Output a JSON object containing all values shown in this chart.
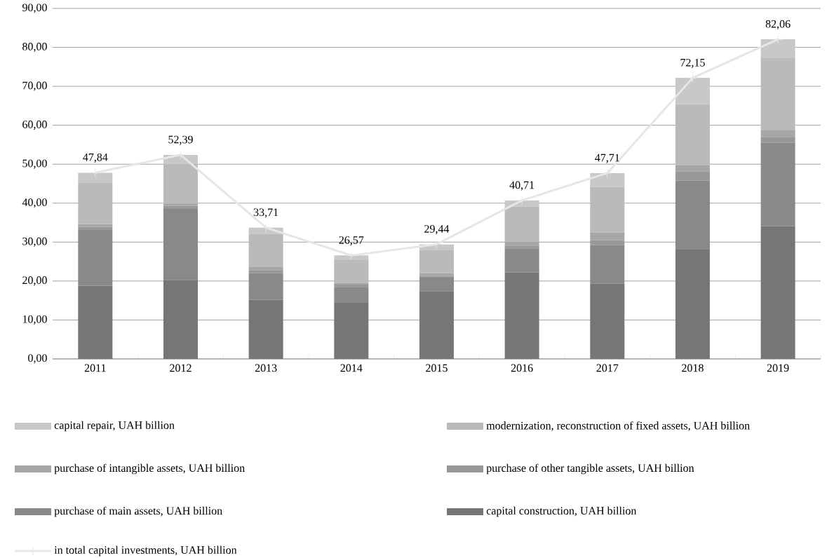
{
  "chart_data": {
    "type": "bar",
    "stacked": true,
    "categories": [
      "2011",
      "2012",
      "2013",
      "2014",
      "2015",
      "2016",
      "2017",
      "2018",
      "2019"
    ],
    "series": [
      {
        "name": "capital construction, UAH billion",
        "color": "#767676",
        "values": [
          18.8,
          20.3,
          15.2,
          14.4,
          17.4,
          22.2,
          19.3,
          28.1,
          34.1
        ]
      },
      {
        "name": "purchase of main assets, UAH billion",
        "color": "#898989",
        "values": [
          14.3,
          18.2,
          6.8,
          4.1,
          3.5,
          6.2,
          9.9,
          17.7,
          21.4
        ]
      },
      {
        "name": "purchase of other tangible assets, UAH billion",
        "color": "#989898",
        "values": [
          0.8,
          0.8,
          0.8,
          0.6,
          0.4,
          0.7,
          1.3,
          2.4,
          1.5
        ]
      },
      {
        "name": "purchase of intangible assets, UAH billion",
        "color": "#a6a6a6",
        "values": [
          0.7,
          0.6,
          0.8,
          0.4,
          0.7,
          0.9,
          2.0,
          1.5,
          1.8
        ]
      },
      {
        "name": "modernization, reconstruction of fixed assets, UAH billion",
        "color": "#bababa",
        "values": [
          10.6,
          10.1,
          8.5,
          6.0,
          5.9,
          9.1,
          11.7,
          15.7,
          18.4
        ]
      },
      {
        "name": "capital repair, UAH billion",
        "color": "#c8c8c8",
        "values": [
          2.6,
          2.4,
          1.6,
          1.1,
          1.5,
          1.6,
          3.5,
          6.8,
          4.9
        ]
      },
      {
        "name": "in total capital investments, UAH billion",
        "type": "line",
        "color": "#e6e6e6",
        "marker": "cross",
        "values": [
          47.84,
          52.39,
          33.71,
          26.57,
          29.44,
          40.71,
          47.71,
          72.15,
          82.06
        ],
        "value_labels": [
          "47,84",
          "52,39",
          "33,71",
          "26,57",
          "29,44",
          "40,71",
          "47,71",
          "72,15",
          "82,06"
        ]
      }
    ],
    "ylim": [
      0,
      90
    ],
    "yticks": [
      {
        "value": 0,
        "label": "0,00"
      },
      {
        "value": 10,
        "label": "10,00"
      },
      {
        "value": 20,
        "label": "20,00"
      },
      {
        "value": 30,
        "label": "30,00"
      },
      {
        "value": 40,
        "label": "40,00"
      },
      {
        "value": 50,
        "label": "50,00"
      },
      {
        "value": 60,
        "label": "60,00"
      },
      {
        "value": 70,
        "label": "70,00"
      },
      {
        "value": 80,
        "label": "80,00"
      },
      {
        "value": 90,
        "label": "90,00"
      }
    ],
    "grid": "y",
    "legend": "bottom"
  }
}
